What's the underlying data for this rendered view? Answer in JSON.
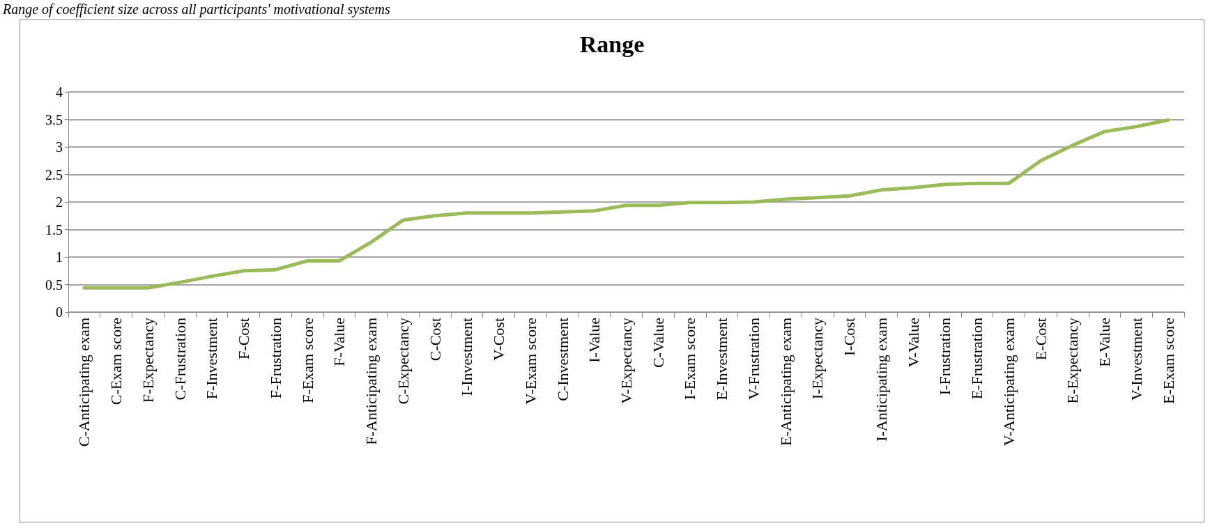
{
  "chart_data": {
    "type": "line",
    "title": "Range",
    "annotations": [
      "Range of coefficient size across all participants' motivational systems"
    ],
    "categories": [
      "C-Anticipating exam",
      "C-Exam score",
      "F-Expectancy",
      "C-Frustration",
      "F-Investment",
      "F-Cost",
      "F-Frustration",
      "F-Exam score",
      "F-Value",
      "F-Anticipating exam",
      "C-Expectancy",
      "C-Cost",
      "I-Investment",
      "V-Cost",
      "V-Exam score",
      "C-Investment",
      "I-Value",
      "V-Expectancy",
      "C-Value",
      "I-Exam score",
      "E-Investment",
      "V-Frustration",
      "E-Anticipating exam",
      "I-Expectancy",
      "I-Cost",
      "I-Anticipating exam",
      "V-Value",
      "I-Frustration",
      "E-Frustration",
      "V-Anticipating exam",
      "E-Cost",
      "E-Expectancy",
      "E-Value",
      "V-Investment",
      "E-Exam score"
    ],
    "series": [
      {
        "color": "#9bbb59",
        "values": [
          0.44,
          0.44,
          0.44,
          0.54,
          0.65,
          0.75,
          0.77,
          0.93,
          0.93,
          1.27,
          1.67,
          1.75,
          1.8,
          1.8,
          1.8,
          1.82,
          1.84,
          1.94,
          1.94,
          1.99,
          1.99,
          2.0,
          2.05,
          2.08,
          2.11,
          2.22,
          2.26,
          2.32,
          2.34,
          2.34,
          2.75,
          3.03,
          3.28,
          3.37,
          3.49
        ]
      }
    ],
    "ylim": [
      0,
      4
    ],
    "yticks": [
      0,
      0.5,
      1,
      1.5,
      2,
      2.5,
      3,
      3.5,
      4
    ],
    "grid": "y",
    "marker": "none",
    "line_style": "solid"
  }
}
